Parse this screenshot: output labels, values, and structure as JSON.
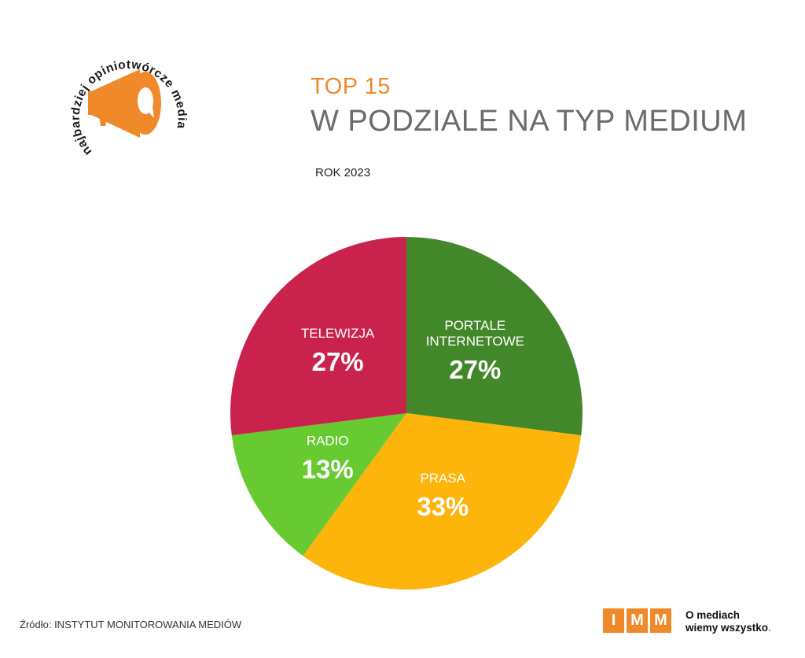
{
  "badge": {
    "circle_text": "najbardziej opiniotwórcze media",
    "icon": "megaphone-icon"
  },
  "header": {
    "title_top": "TOP 15",
    "title_main": "W PODZIALE NA TYP MEDIUM",
    "subtitle": "ROK 2023"
  },
  "colors": {
    "accent": "#F0892A",
    "title_gray": "#6B6B6B"
  },
  "chart_data": {
    "type": "pie",
    "slices": [
      {
        "label": "PORTALE INTERNETOWE",
        "label_lines": [
          "PORTALE",
          "INTERNETOWE"
        ],
        "value": 27,
        "value_label": "27%",
        "color": "#42882A"
      },
      {
        "label": "PRASA",
        "label_lines": [
          "PRASA"
        ],
        "value": 33,
        "value_label": "33%",
        "color": "#FDB40B"
      },
      {
        "label": "RADIO",
        "label_lines": [
          "RADIO"
        ],
        "value": 13,
        "value_label": "13%",
        "color": "#67CA31"
      },
      {
        "label": "TELEWIZJA",
        "label_lines": [
          "TELEWIZJA"
        ],
        "value": 27,
        "value_label": "27%",
        "color": "#C9224D"
      }
    ]
  },
  "footer": {
    "source": "Źródło: INSTYTUT MONITOROWANIA MEDIÓW",
    "logo_letters": [
      "I",
      "M",
      "M"
    ],
    "tagline_line1": "O mediach",
    "tagline_line2": "wiemy wszystko",
    "tagline_dot": "."
  }
}
